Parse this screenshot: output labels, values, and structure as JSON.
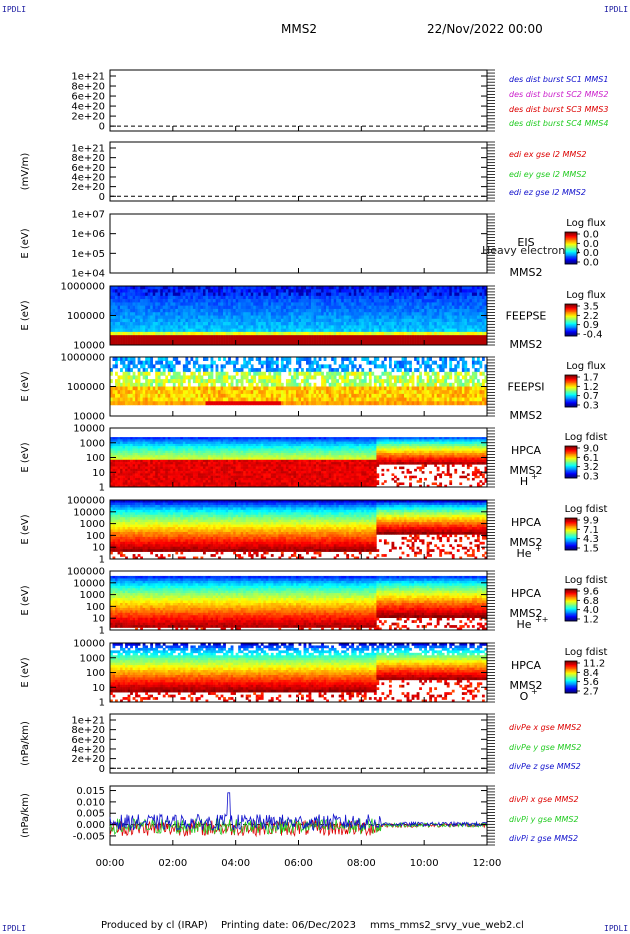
{
  "corner_labels": [
    "IPDLI",
    "IPDLI",
    "IPDLI",
    "IPDLI"
  ],
  "header": {
    "spacecraft": "MMS2",
    "date": "22/Nov/2022 00:00"
  },
  "footer": {
    "producer": "Produced by cl (IRAP)",
    "printing": "Printing date: 06/Dec/2023",
    "file": "mms_mms2_srvy_vue_web2.cl"
  },
  "colors": {
    "red": "#dd0000",
    "green": "#22cc22",
    "blue": "#1010cc",
    "magenta": "#cc22cc"
  },
  "x_axis": {
    "ticks": [
      "00:00",
      "02:00",
      "04:00",
      "06:00",
      "08:00",
      "10:00",
      "12:00"
    ],
    "range_hours": [
      0,
      12
    ]
  },
  "chart_data": [
    {
      "type": "line",
      "ylabel": "",
      "ticks": [
        "1e+21",
        "8e+20",
        "6e+20",
        "4e+20",
        "2e+20",
        "0"
      ],
      "legend": [
        {
          "name": "des dist burst SC1 MMS1",
          "color": "#1010cc"
        },
        {
          "name": "des dist burst SC2 MMS2",
          "color": "#cc22cc"
        },
        {
          "name": "des dist burst SC3 MMS3",
          "color": "#dd0000"
        },
        {
          "name": "des dist burst SC4 MMS4",
          "color": "#22cc22"
        }
      ]
    },
    {
      "type": "line",
      "ylabel": "(mV/m)",
      "ticks": [
        "1e+21",
        "8e+20",
        "6e+20",
        "4e+20",
        "2e+20",
        "0"
      ],
      "legend": [
        {
          "name": "edi ex gse l2 MMS2",
          "color": "#dd0000"
        },
        {
          "name": "edi ey gse l2 MMS2",
          "color": "#22cc22"
        },
        {
          "name": "edi ez gse l2 MMS2",
          "color": "#1010cc"
        }
      ]
    },
    {
      "type": "heatmap",
      "ylabel": "E (eV)",
      "ticks": [
        "1e+07",
        "1e+06",
        "1e+05",
        "1e+04"
      ],
      "instrument": [
        "EIS",
        "MMS2"
      ],
      "overlay": "Heavy electron to",
      "colorbar": {
        "title": "Log flux",
        "ticks": [
          "0.0",
          "0.0",
          "0.0",
          "0.0"
        ]
      }
    },
    {
      "type": "heatmap",
      "ylabel": "E (eV)",
      "ticks": [
        "1000000",
        "100000",
        "10000"
      ],
      "instrument": [
        "FEEPSE",
        "MMS2"
      ],
      "colorbar": {
        "title": "Log flux",
        "ticks": [
          "3.5",
          "2.2",
          "0.9",
          "-0.4"
        ]
      }
    },
    {
      "type": "heatmap",
      "ylabel": "E (eV)",
      "ticks": [
        "1000000",
        "100000",
        "10000"
      ],
      "instrument": [
        "FEEPSI",
        "MMS2"
      ],
      "colorbar": {
        "title": "Log flux",
        "ticks": [
          "1.7",
          "1.2",
          "0.7",
          "0.3"
        ]
      }
    },
    {
      "type": "heatmap",
      "ylabel": "E (eV)",
      "ticks": [
        "10000",
        "1000",
        "100",
        "10",
        "1"
      ],
      "instrument": [
        "HPCA",
        "MMS2"
      ],
      "species": "H",
      "charge": "+",
      "colorbar": {
        "title": "Log fdist",
        "ticks": [
          "9.0",
          "6.1",
          "3.2",
          "0.3"
        ]
      }
    },
    {
      "type": "heatmap",
      "ylabel": "E (eV)",
      "ticks": [
        "100000",
        "10000",
        "1000",
        "100",
        "10",
        "1"
      ],
      "instrument": [
        "HPCA",
        "MMS2"
      ],
      "species": "He",
      "charge": "+",
      "colorbar": {
        "title": "Log fdist",
        "ticks": [
          "9.9",
          "7.1",
          "4.3",
          "1.5"
        ]
      }
    },
    {
      "type": "heatmap",
      "ylabel": "E (eV)",
      "ticks": [
        "100000",
        "10000",
        "1000",
        "100",
        "10",
        "1"
      ],
      "instrument": [
        "HPCA",
        "MMS2"
      ],
      "species": "He",
      "charge": "++",
      "colorbar": {
        "title": "Log fdist",
        "ticks": [
          "9.6",
          "6.8",
          "4.0",
          "1.2"
        ]
      }
    },
    {
      "type": "heatmap",
      "ylabel": "E (eV)",
      "ticks": [
        "10000",
        "1000",
        "100",
        "10",
        "1"
      ],
      "instrument": [
        "HPCA",
        "MMS2"
      ],
      "species": "O",
      "charge": "+",
      "colorbar": {
        "title": "Log fdist",
        "ticks": [
          "11.2",
          "8.4",
          "5.6",
          "2.7"
        ]
      }
    },
    {
      "type": "line",
      "ylabel": "(nPa/km)",
      "ticks": [
        "1e+21",
        "8e+20",
        "6e+20",
        "4e+20",
        "2e+20",
        "0"
      ],
      "legend": [
        {
          "name": "divPe x gse MMS2",
          "color": "#dd0000"
        },
        {
          "name": "divPe y gse MMS2",
          "color": "#22cc22"
        },
        {
          "name": "divPe z gse MMS2",
          "color": "#1010cc"
        }
      ]
    },
    {
      "type": "line",
      "ylabel": "(nPa/km)",
      "ticks": [
        "0.015",
        "0.010",
        "0.005",
        "0.000",
        "-0.005"
      ],
      "ylim": [
        -0.009,
        0.017
      ],
      "legend": [
        {
          "name": "divPi x gse MMS2",
          "color": "#dd0000"
        },
        {
          "name": "divPi y gse MMS2",
          "color": "#22cc22"
        },
        {
          "name": "divPi z gse MMS2",
          "color": "#1010cc"
        }
      ]
    }
  ]
}
